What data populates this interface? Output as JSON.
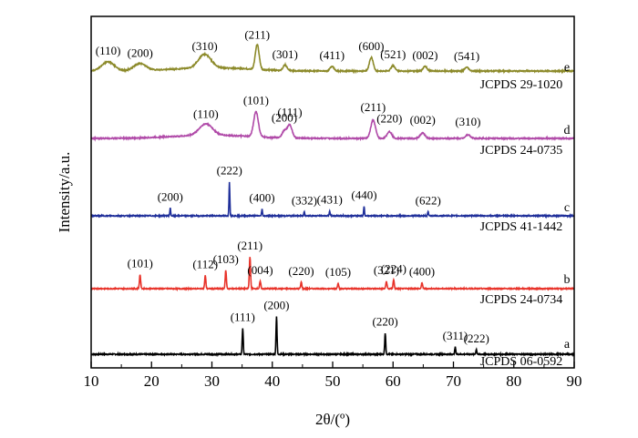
{
  "chart_data": {
    "type": "line",
    "xlabel": "2θ/(º)",
    "ylabel": "Intensity/a.u.",
    "xlim": [
      10,
      90
    ],
    "x_ticks": [
      10,
      20,
      30,
      40,
      50,
      60,
      70,
      80,
      90
    ],
    "grid": false,
    "legend": "none",
    "series": [
      {
        "name": "a",
        "reference": "JCPDS 06-0592",
        "color": "#000000",
        "peaks": [
          {
            "x": 35.1,
            "h": 0.55,
            "label": "(111)"
          },
          {
            "x": 40.7,
            "h": 0.8,
            "label": "(200)"
          },
          {
            "x": 58.7,
            "h": 0.45,
            "label": "(220)"
          },
          {
            "x": 70.3,
            "h": 0.15,
            "label": "(311)"
          },
          {
            "x": 73.8,
            "h": 0.1,
            "label": "(222)"
          }
        ]
      },
      {
        "name": "b",
        "reference": "JCPDS 24-0734",
        "color": "#e8332a",
        "peaks": [
          {
            "x": 18.1,
            "h": 0.35,
            "label": "(101)"
          },
          {
            "x": 28.9,
            "h": 0.33,
            "label": "(112)"
          },
          {
            "x": 32.3,
            "h": 0.45,
            "label": "(103)"
          },
          {
            "x": 36.3,
            "h": 0.8,
            "label": "(211)"
          },
          {
            "x": 38.0,
            "h": 0.18,
            "label": "(004)"
          },
          {
            "x": 44.8,
            "h": 0.16,
            "label": "(220)"
          },
          {
            "x": 50.9,
            "h": 0.14,
            "label": "(105)"
          },
          {
            "x": 58.9,
            "h": 0.18,
            "label": "(321)"
          },
          {
            "x": 60.1,
            "h": 0.22,
            "label": "(224)"
          },
          {
            "x": 64.8,
            "h": 0.15,
            "label": "(400)"
          }
        ]
      },
      {
        "name": "c",
        "reference": "JCPDS 41-1442",
        "color": "#1f2f9a",
        "peaks": [
          {
            "x": 23.1,
            "h": 0.18,
            "label": "(200)"
          },
          {
            "x": 32.9,
            "h": 0.8,
            "label": "(222)"
          },
          {
            "x": 38.3,
            "h": 0.16,
            "label": "(400)"
          },
          {
            "x": 45.3,
            "h": 0.1,
            "label": "(332)"
          },
          {
            "x": 49.5,
            "h": 0.12,
            "label": "(431)"
          },
          {
            "x": 55.2,
            "h": 0.22,
            "label": "(440)"
          },
          {
            "x": 65.8,
            "h": 0.1,
            "label": "(622)"
          }
        ]
      },
      {
        "name": "d",
        "reference": "JCPDS 24-0735",
        "color": "#b04aa8",
        "peaks": [
          {
            "x": 29.0,
            "h": 0.25,
            "label": "(110)"
          },
          {
            "x": 37.3,
            "h": 0.55,
            "label": "(101)"
          },
          {
            "x": 42.0,
            "h": 0.15,
            "label": "(200)"
          },
          {
            "x": 42.9,
            "h": 0.28,
            "label": "(111)"
          },
          {
            "x": 56.7,
            "h": 0.4,
            "label": "(211)"
          },
          {
            "x": 59.4,
            "h": 0.15,
            "label": "(220)"
          },
          {
            "x": 64.9,
            "h": 0.12,
            "label": "(002)"
          },
          {
            "x": 72.4,
            "h": 0.08,
            "label": "(310)"
          }
        ]
      },
      {
        "name": "e",
        "reference": "JCPDS 29-1020",
        "color": "#8c8a2a",
        "peaks": [
          {
            "x": 12.8,
            "h": 0.2,
            "label": "(110)"
          },
          {
            "x": 18.1,
            "h": 0.15,
            "label": "(200)"
          },
          {
            "x": 28.8,
            "h": 0.3,
            "label": "(310)"
          },
          {
            "x": 37.5,
            "h": 0.55,
            "label": "(211)"
          },
          {
            "x": 42.1,
            "h": 0.12,
            "label": "(301)"
          },
          {
            "x": 49.9,
            "h": 0.1,
            "label": "(411)"
          },
          {
            "x": 56.4,
            "h": 0.3,
            "label": "(600)"
          },
          {
            "x": 60.0,
            "h": 0.12,
            "label": "(521)"
          },
          {
            "x": 65.3,
            "h": 0.1,
            "label": "(002)"
          },
          {
            "x": 72.2,
            "h": 0.08,
            "label": "(541)"
          }
        ]
      }
    ]
  }
}
